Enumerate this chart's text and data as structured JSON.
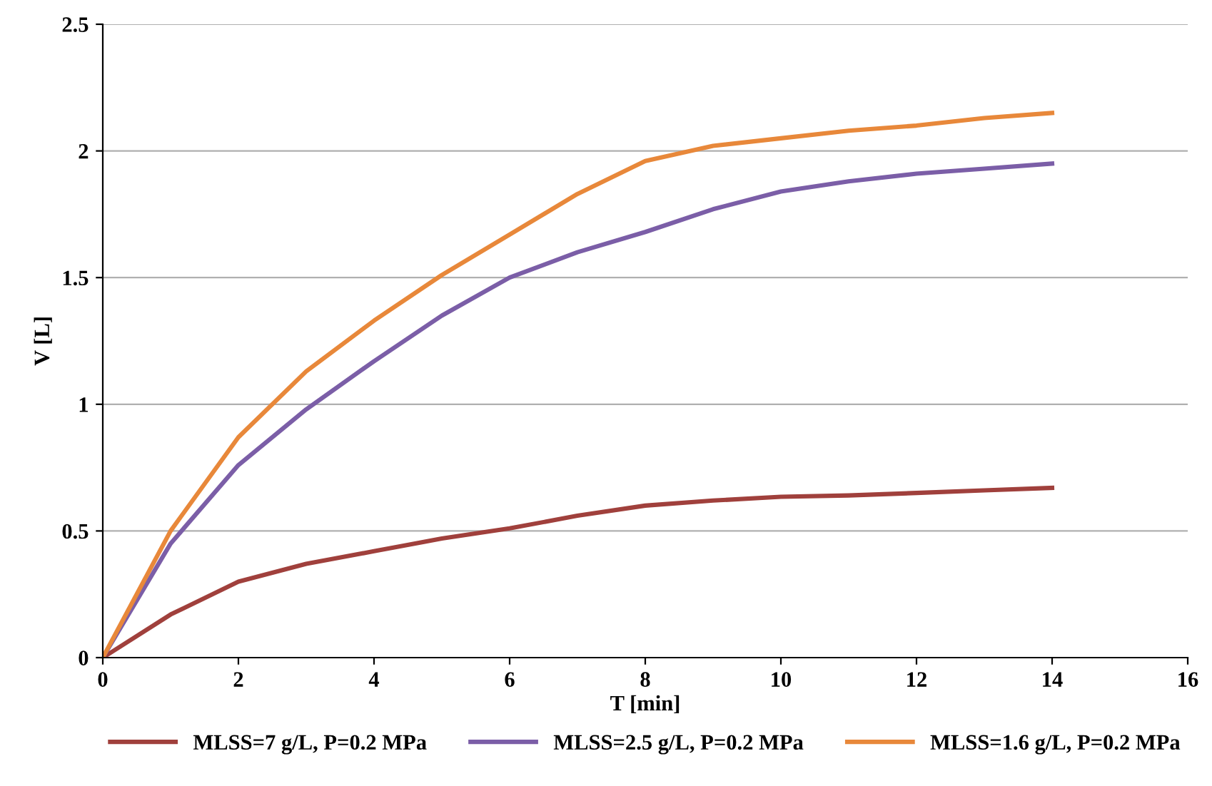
{
  "chart_data": {
    "type": "line",
    "xlabel": "T [min]",
    "ylabel": "V [L]",
    "xlim": [
      0,
      16
    ],
    "xticks": [
      0,
      2,
      4,
      6,
      8,
      10,
      12,
      14,
      16
    ],
    "ylim": [
      0,
      2.5
    ],
    "yticks": [
      0,
      0.5,
      1,
      1.5,
      2,
      2.5
    ],
    "grid": "y",
    "legend": "bottom",
    "marker": "none",
    "line_style": "solid",
    "x": [
      0,
      1,
      2,
      3,
      4,
      5,
      6,
      7,
      8,
      9,
      10,
      11,
      12,
      13,
      14
    ],
    "series": [
      {
        "name": "MLSS=7 g/L, P=0.2 MPa",
        "color": "#a0403c",
        "values": [
          0,
          0.17,
          0.3,
          0.37,
          0.42,
          0.47,
          0.51,
          0.56,
          0.6,
          0.62,
          0.635,
          0.64,
          0.65,
          0.66,
          0.67
        ]
      },
      {
        "name": "MLSS=2.5 g/L, P=0.2 MPa",
        "color": "#7b5ea7",
        "values": [
          0,
          0.45,
          0.76,
          0.98,
          1.17,
          1.35,
          1.5,
          1.6,
          1.68,
          1.77,
          1.84,
          1.88,
          1.91,
          1.93,
          1.95
        ]
      },
      {
        "name": "MLSS=1.6 g/L, P=0.2 MPa",
        "color": "#e8883a",
        "values": [
          0,
          0.5,
          0.87,
          1.13,
          1.33,
          1.51,
          1.67,
          1.83,
          1.96,
          2.02,
          2.05,
          2.08,
          2.1,
          2.13,
          2.15
        ]
      }
    ]
  }
}
